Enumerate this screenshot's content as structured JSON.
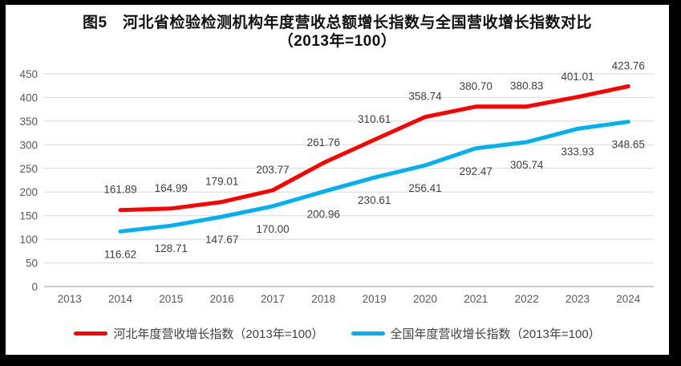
{
  "title": {
    "line1": "图5　河北省检验检测机构年度营收总额增长指数与全国营收增长指数对比",
    "line2": "（2013年=100）"
  },
  "chart_data": {
    "type": "line",
    "categories": [
      "2013",
      "2014",
      "2015",
      "2016",
      "2017",
      "2018",
      "2019",
      "2020",
      "2021",
      "2022",
      "2023",
      "2024"
    ],
    "series": [
      {
        "name": "河北年度营收增长指数（2013年=100）",
        "color": "#FF0000",
        "label_position": "above",
        "x": [
          "2014",
          "2015",
          "2016",
          "2017",
          "2018",
          "2019",
          "2020",
          "2021",
          "2022",
          "2023",
          "2024"
        ],
        "values": [
          161.89,
          164.99,
          179.01,
          203.77,
          261.76,
          310.61,
          358.74,
          380.7,
          380.83,
          401.01,
          423.76
        ],
        "labels": [
          "161.89",
          "164.99",
          "179.01",
          "203.77",
          "261.76",
          "310.61",
          "358.74",
          "380.70",
          "380.83",
          "401.01",
          "423.76"
        ]
      },
      {
        "name": "全国年度营收增长指数（2013年=100）",
        "color": "#00B0F0",
        "label_position": "below",
        "x": [
          "2014",
          "2015",
          "2016",
          "2017",
          "2018",
          "2019",
          "2020",
          "2021",
          "2022",
          "2023",
          "2024"
        ],
        "values": [
          116.62,
          128.71,
          147.67,
          170.0,
          200.96,
          230.61,
          256.41,
          292.47,
          305.74,
          333.93,
          348.65
        ],
        "labels": [
          "116.62",
          "128.71",
          "147.67",
          "170.00",
          "200.96",
          "230.61",
          "256.41",
          "292.47",
          "305.74",
          "333.93",
          "348.65"
        ]
      }
    ],
    "title": "图5　河北省检验检测机构年度营收总额增长指数与全国营收增长指数对比（2013年=100）",
    "xlabel": "",
    "ylabel": "",
    "ylim": [
      0,
      450
    ],
    "yticks": [
      0,
      50,
      100,
      150,
      200,
      250,
      300,
      350,
      400,
      450
    ],
    "ytick_step": 50,
    "grid": true,
    "legend_position": "bottom",
    "colors": {
      "grid_line": "#D9D9D9",
      "baseline": "#BFBFBF",
      "tick_text": "#595959",
      "data_label_text": "#404040",
      "title_text": "#111111",
      "frame": "#000000",
      "canvas": "#FFFFFF"
    }
  }
}
